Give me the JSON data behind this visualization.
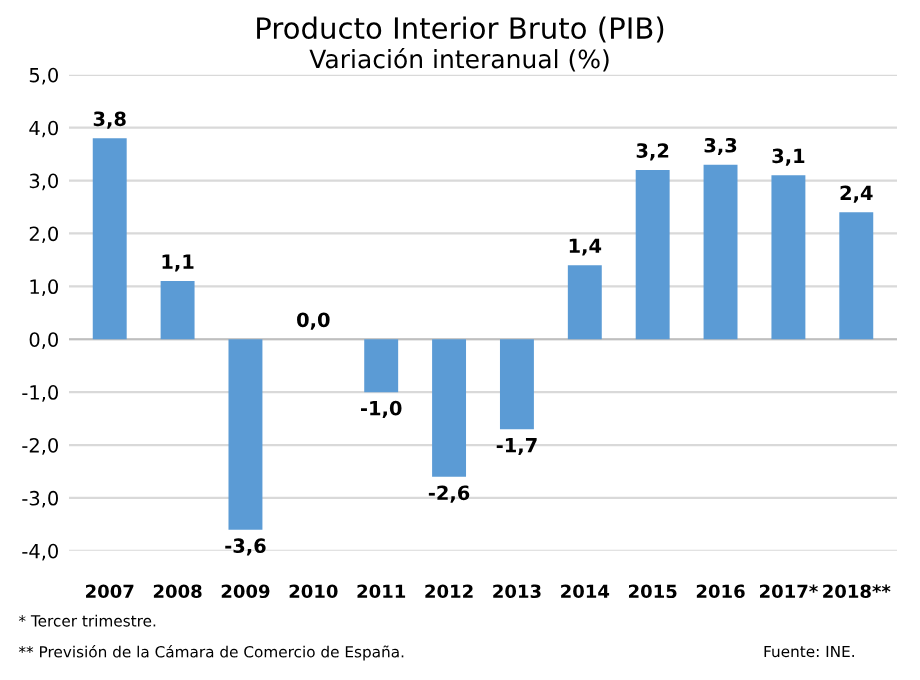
{
  "chart_data": {
    "type": "bar",
    "title": "Producto Interior Bruto (PIB)",
    "subtitle": "Variación interanual (%)",
    "categories": [
      "2007",
      "2008",
      "2009",
      "2010",
      "2011",
      "2012",
      "2013",
      "2014",
      "2015",
      "2016",
      "2017*",
      "2018**"
    ],
    "values": [
      3.8,
      1.1,
      -3.6,
      0.0,
      -1.0,
      -2.6,
      -1.7,
      1.4,
      3.2,
      3.3,
      3.1,
      2.4
    ],
    "value_labels": [
      "3,8",
      "1,1",
      "-3,6",
      "0,0",
      "-1,0",
      "-2,6",
      "-1,7",
      "1,4",
      "3,2",
      "3,3",
      "3,1",
      "2,4"
    ],
    "color": "#5b9bd5",
    "ylim": [
      -4.0,
      5.0
    ],
    "yticks": [
      {
        "value": -4,
        "label": "-4,0"
      },
      {
        "value": -3,
        "label": "-3,0"
      },
      {
        "value": -2,
        "label": "-2,0"
      },
      {
        "value": -1,
        "label": "-1,0"
      },
      {
        "value": 0,
        "label": "0,0"
      },
      {
        "value": 1,
        "label": "1,0"
      },
      {
        "value": 2,
        "label": "2,0"
      },
      {
        "value": 3,
        "label": "3,0"
      },
      {
        "value": 4,
        "label": "4,0"
      },
      {
        "value": 5,
        "label": "5,0"
      }
    ],
    "grid": "y",
    "annotations": [
      "* Tercer trimestre.",
      "** Previsión de la Cámara de Comercio de España.",
      "Fuente: INE."
    ]
  }
}
